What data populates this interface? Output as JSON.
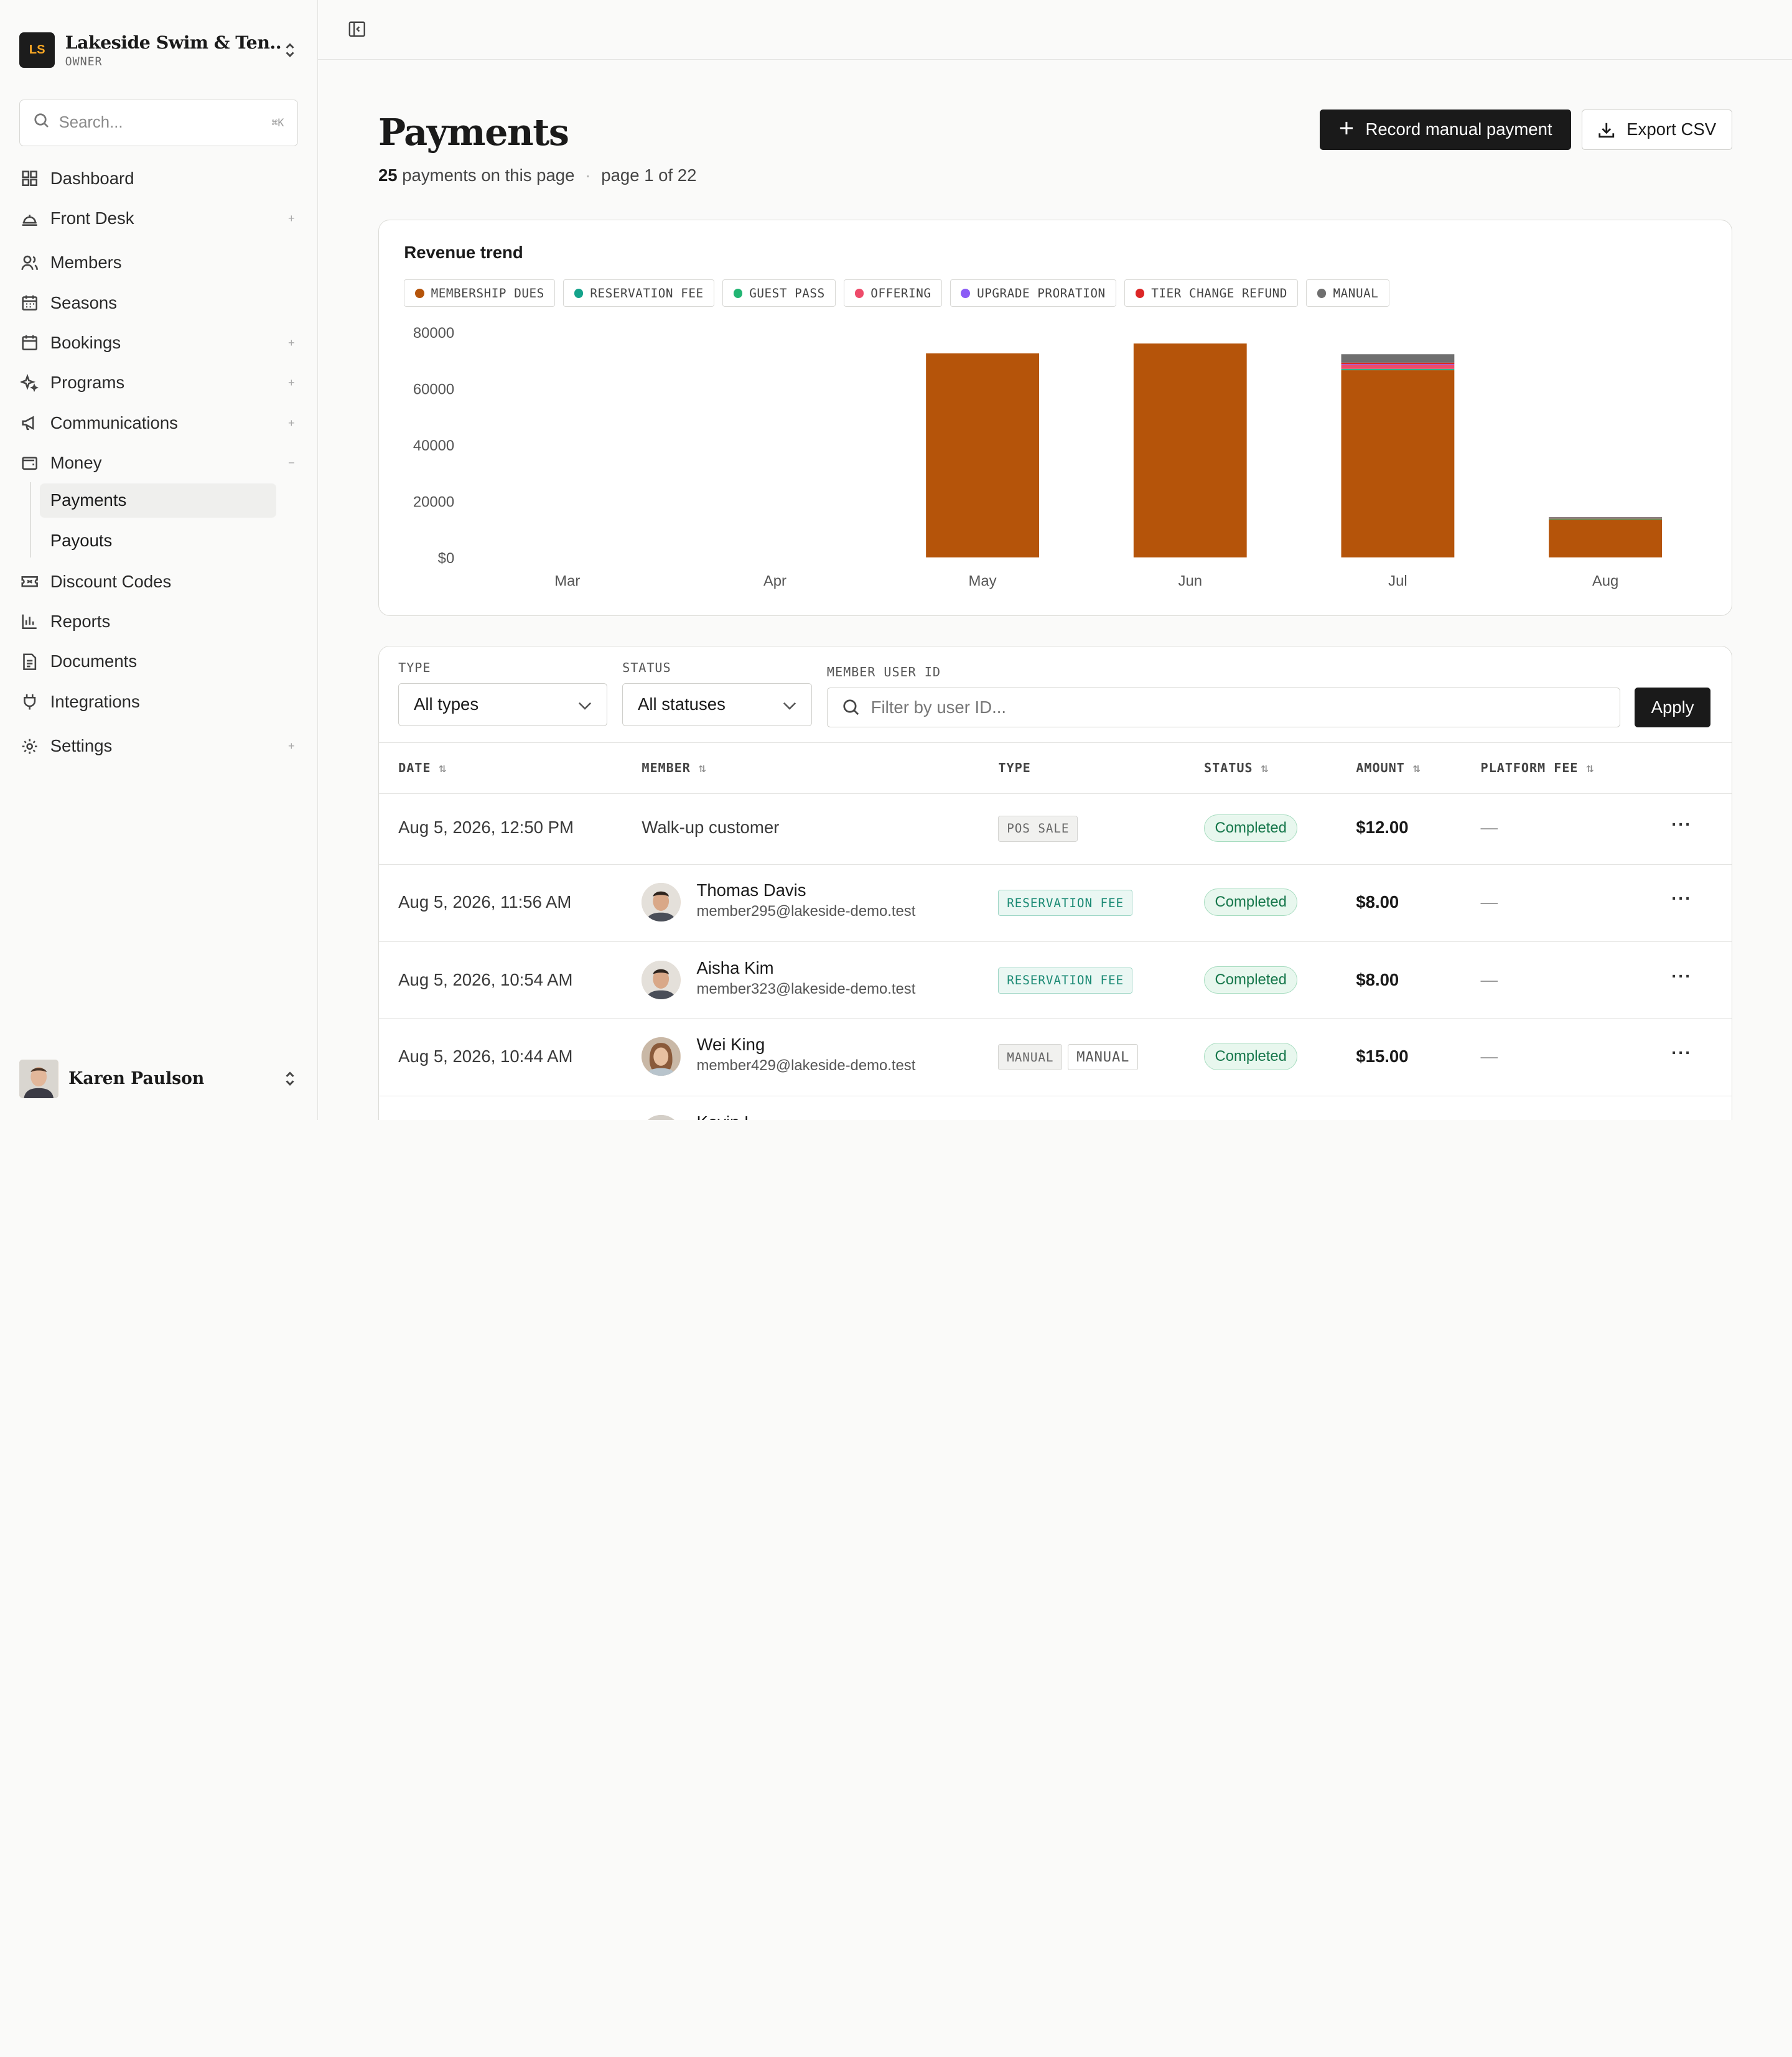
{
  "org": {
    "initials": "LS",
    "name": "Lakeside Swim & Ten...",
    "role": "OWNER"
  },
  "search": {
    "placeholder": "Search...",
    "shortcut": "⌘K"
  },
  "nav": {
    "dashboard": "Dashboard",
    "front_desk": "Front Desk",
    "members": "Members",
    "seasons": "Seasons",
    "bookings": "Bookings",
    "programs": "Programs",
    "communications": "Communications",
    "money": "Money",
    "payments": "Payments",
    "payouts": "Payouts",
    "discount_codes": "Discount Codes",
    "reports": "Reports",
    "documents": "Documents",
    "integrations": "Integrations",
    "settings": "Settings",
    "expand_symbol": "+",
    "collapse_symbol": "−"
  },
  "user": {
    "name": "Karen Paulson"
  },
  "page": {
    "title": "Payments",
    "count": "25",
    "count_suffix": "payments on this page",
    "separator": "·",
    "pagination": "page 1 of 22"
  },
  "actions": {
    "record": "Record manual payment",
    "export": "Export CSV"
  },
  "chart_data": {
    "type": "bar",
    "title": "Revenue trend",
    "stacked": true,
    "legend_position": "top-left",
    "categories": [
      "Mar",
      "Apr",
      "May",
      "Jun",
      "Jul",
      "Aug"
    ],
    "ylim": [
      0,
      80000
    ],
    "yticks": [
      "$0",
      "20000",
      "40000",
      "60000",
      "80000"
    ],
    "series": [
      {
        "name": "MEMBERSHIP DUES",
        "color": "#b5540a",
        "values": [
          0,
          0,
          72500,
          76000,
          66500,
          13500
        ]
      },
      {
        "name": "RESERVATION FEE",
        "color": "#14a38b",
        "values": [
          0,
          0,
          0,
          0,
          300,
          200
        ]
      },
      {
        "name": "GUEST PASS",
        "color": "#22b573",
        "values": [
          0,
          0,
          0,
          0,
          200,
          100
        ]
      },
      {
        "name": "OFFERING",
        "color": "#ee4b6a",
        "values": [
          0,
          0,
          0,
          0,
          1500,
          200
        ]
      },
      {
        "name": "UPGRADE PRORATION",
        "color": "#8b5cf6",
        "values": [
          0,
          0,
          0,
          0,
          200,
          0
        ]
      },
      {
        "name": "TIER CHANGE REFUND",
        "color": "#dc2626",
        "values": [
          0,
          0,
          0,
          0,
          500,
          0
        ]
      },
      {
        "name": "MANUAL",
        "color": "#6f6f6f",
        "values": [
          0,
          0,
          0,
          0,
          3000,
          300
        ]
      }
    ]
  },
  "filters": {
    "type_label": "TYPE",
    "type_value": "All types",
    "status_label": "STATUS",
    "status_value": "All statuses",
    "member_label": "MEMBER USER ID",
    "member_placeholder": "Filter by user ID...",
    "apply": "Apply"
  },
  "table": {
    "headers": [
      "DATE",
      "MEMBER",
      "TYPE",
      "STATUS",
      "AMOUNT",
      "PLATFORM FEE"
    ],
    "sort_symbol": "⇅",
    "more_symbol": "···",
    "rows": [
      {
        "date": "Aug 5, 2026, 12:50 PM",
        "member_name": "Walk-up customer",
        "member_email": "",
        "type": "POS SALE",
        "type2": "",
        "status": "Completed",
        "amount": "$12.00",
        "fee": "—"
      },
      {
        "date": "Aug 5, 2026, 11:56 AM",
        "member_name": "Thomas Davis",
        "member_email": "member295@lakeside-demo.test",
        "type": "RESERVATION FEE",
        "type2": "",
        "status": "Completed",
        "amount": "$8.00",
        "fee": "—"
      },
      {
        "date": "Aug 5, 2026, 10:54 AM",
        "member_name": "Aisha Kim",
        "member_email": "member323@lakeside-demo.test",
        "type": "RESERVATION FEE",
        "type2": "",
        "status": "Completed",
        "amount": "$8.00",
        "fee": "—"
      },
      {
        "date": "Aug 5, 2026, 10:44 AM",
        "member_name": "Wei King",
        "member_email": "member429@lakeside-demo.test",
        "type": "MANUAL",
        "type2": "MANUAL",
        "status": "Completed",
        "amount": "$15.00",
        "fee": "—"
      },
      {
        "date": "",
        "member_name": "Kevin L...",
        "member_email": "",
        "type": "",
        "type2": "",
        "status": "",
        "amount": "",
        "fee": ""
      }
    ]
  }
}
